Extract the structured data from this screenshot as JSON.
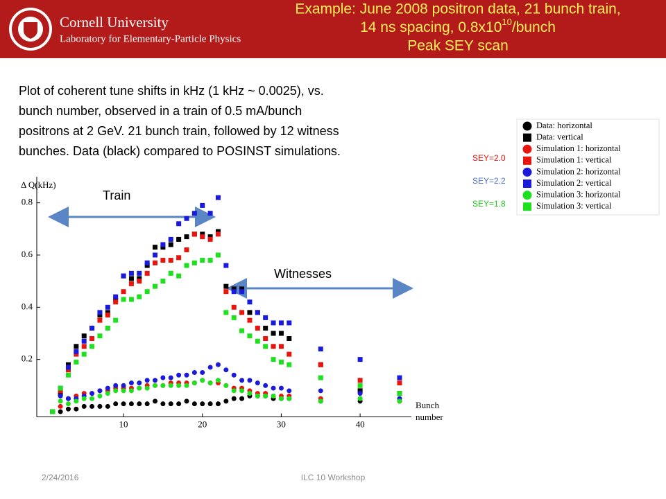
{
  "header": {
    "org": "Cornell University",
    "lab": "Laboratory for Elementary-Particle Physics",
    "title": {
      "line1": "Example: June 2008 positron data, 21 bunch train,",
      "line2_pre": "14 ns spacing, 0.8x10",
      "line2_sup": "10",
      "line2_post": "/bunch",
      "line3": "Peak SEY scan"
    }
  },
  "description": [
    "Plot of coherent tune shifts in kHz (1 kHz ~ 0.0025), vs.",
    "bunch number, observed in a train of 0.5 mA/bunch",
    "positrons at 2 GeV. 21 bunch train, followed by 12 witness",
    "bunches. Data (black) compared to POSINST simulations."
  ],
  "chart_data": {
    "type": "scatter",
    "y_label": "Δ Q(kHz)",
    "x_label": [
      "Bunch",
      "number"
    ],
    "xlim": [
      -1,
      46.5
    ],
    "ylim": [
      -0.02,
      0.9
    ],
    "xticks": [
      10,
      20,
      30,
      40
    ],
    "yticks": [
      0.2,
      0.4,
      0.6,
      0.8
    ],
    "x": [
      1,
      2,
      3,
      4,
      5,
      6,
      7,
      8,
      9,
      10,
      11,
      12,
      13,
      14,
      15,
      16,
      17,
      18,
      19,
      20,
      21,
      22,
      23,
      24,
      25,
      26,
      27,
      28,
      29,
      30,
      31,
      35,
      40,
      45
    ],
    "series": [
      {
        "name": "Data: horizontal",
        "color": "#000000",
        "marker": "circle",
        "values": [
          0.0,
          0.0,
          0.01,
          0.01,
          0.02,
          0.02,
          0.02,
          0.02,
          0.03,
          0.03,
          0.03,
          0.03,
          0.03,
          0.04,
          0.03,
          0.03,
          0.03,
          0.04,
          0.03,
          0.03,
          0.03,
          0.03,
          0.04,
          0.05,
          0.05,
          0.06,
          0.06,
          0.06,
          0.05,
          0.05,
          0.05,
          0.04,
          0.04,
          0.04
        ]
      },
      {
        "name": "Data: vertical",
        "color": "#000000",
        "marker": "square",
        "values": [
          0.0,
          0.07,
          0.18,
          0.25,
          0.29,
          0.32,
          0.37,
          0.38,
          0.43,
          0.52,
          0.51,
          0.51,
          0.56,
          0.63,
          0.63,
          0.64,
          0.66,
          0.67,
          0.68,
          0.68,
          0.67,
          0.69,
          0.48,
          0.47,
          0.47,
          0.38,
          0.38,
          0.32,
          0.3,
          0.3,
          0.28,
          0.18,
          0.08,
          0.07
        ]
      },
      {
        "name": "Simulation 1: horizontal",
        "color": "#e8150e",
        "marker": "circle",
        "values": [
          null,
          0.02,
          0.05,
          0.06,
          0.07,
          0.07,
          0.08,
          0.08,
          0.09,
          0.09,
          0.09,
          0.09,
          0.1,
          0.1,
          0.1,
          0.11,
          0.11,
          0.11,
          0.11,
          0.12,
          0.11,
          0.11,
          0.1,
          0.09,
          0.09,
          0.08,
          0.07,
          0.07,
          0.06,
          0.06,
          0.06,
          0.05,
          0.05,
          0.04
        ]
      },
      {
        "name": "Simulation 1: vertical",
        "color": "#e8150e",
        "marker": "square",
        "values": [
          null,
          0.08,
          0.16,
          0.22,
          0.25,
          0.28,
          0.35,
          0.37,
          0.42,
          0.46,
          0.49,
          0.5,
          0.53,
          0.57,
          0.58,
          0.58,
          0.59,
          0.62,
          0.68,
          0.67,
          0.66,
          0.68,
          0.46,
          0.4,
          0.38,
          0.35,
          0.32,
          0.28,
          0.25,
          0.25,
          0.22,
          0.18,
          0.12,
          0.11
        ]
      },
      {
        "name": "Simulation 2: horizontal",
        "color": "#1a1adb",
        "marker": "circle",
        "values": [
          null,
          0.06,
          0.05,
          0.05,
          0.06,
          0.07,
          0.08,
          0.09,
          0.1,
          0.1,
          0.11,
          0.11,
          0.12,
          0.12,
          0.13,
          0.13,
          0.14,
          0.14,
          0.15,
          0.15,
          0.17,
          0.18,
          0.16,
          0.14,
          0.12,
          0.12,
          0.11,
          0.1,
          0.09,
          0.09,
          0.08,
          0.08,
          0.07,
          0.05
        ]
      },
      {
        "name": "Simulation 2: vertical",
        "color": "#1a1adb",
        "marker": "square",
        "values": [
          null,
          0.09,
          0.17,
          0.23,
          0.27,
          0.32,
          0.38,
          0.4,
          0.44,
          0.52,
          0.53,
          0.53,
          0.57,
          0.6,
          0.64,
          0.66,
          0.72,
          0.74,
          0.76,
          0.79,
          0.76,
          0.82,
          0.56,
          0.46,
          0.46,
          0.42,
          0.38,
          0.36,
          0.34,
          0.34,
          0.34,
          0.24,
          0.2,
          0.13
        ]
      },
      {
        "name": "Simulation 3: horizontal",
        "color": "#1ee01e",
        "marker": "circle",
        "values": [
          null,
          0.04,
          0.03,
          0.04,
          0.05,
          0.05,
          0.06,
          0.07,
          0.08,
          0.08,
          0.08,
          0.09,
          0.09,
          0.1,
          0.1,
          0.1,
          0.1,
          0.1,
          0.11,
          0.12,
          0.11,
          0.12,
          0.1,
          0.08,
          0.08,
          0.07,
          0.06,
          0.06,
          0.06,
          0.05,
          0.05,
          0.04,
          0.05,
          0.04
        ]
      },
      {
        "name": "Simulation 3: vertical",
        "color": "#1ee01e",
        "marker": "square",
        "values": [
          0.0,
          0.09,
          0.14,
          0.19,
          0.22,
          0.25,
          0.29,
          0.32,
          0.35,
          0.43,
          0.43,
          0.44,
          0.46,
          0.48,
          0.5,
          0.53,
          0.52,
          0.56,
          0.57,
          0.58,
          0.58,
          0.6,
          0.38,
          0.36,
          0.31,
          0.29,
          0.27,
          0.25,
          0.2,
          0.19,
          0.18,
          0.13,
          0.1,
          0.07
        ]
      }
    ],
    "annotations": [
      {
        "text": "Train"
      },
      {
        "text": "Witnesses"
      },
      {
        "text": "SEY=2.0",
        "color": "#e8150e"
      },
      {
        "text": "SEY=2.2",
        "color": "#4a6fd0"
      },
      {
        "text": "SEY=1.8",
        "color": "#1ec81e"
      }
    ]
  },
  "footer": {
    "date": "2/24/2016",
    "event": "ILC 10 Workshop"
  }
}
